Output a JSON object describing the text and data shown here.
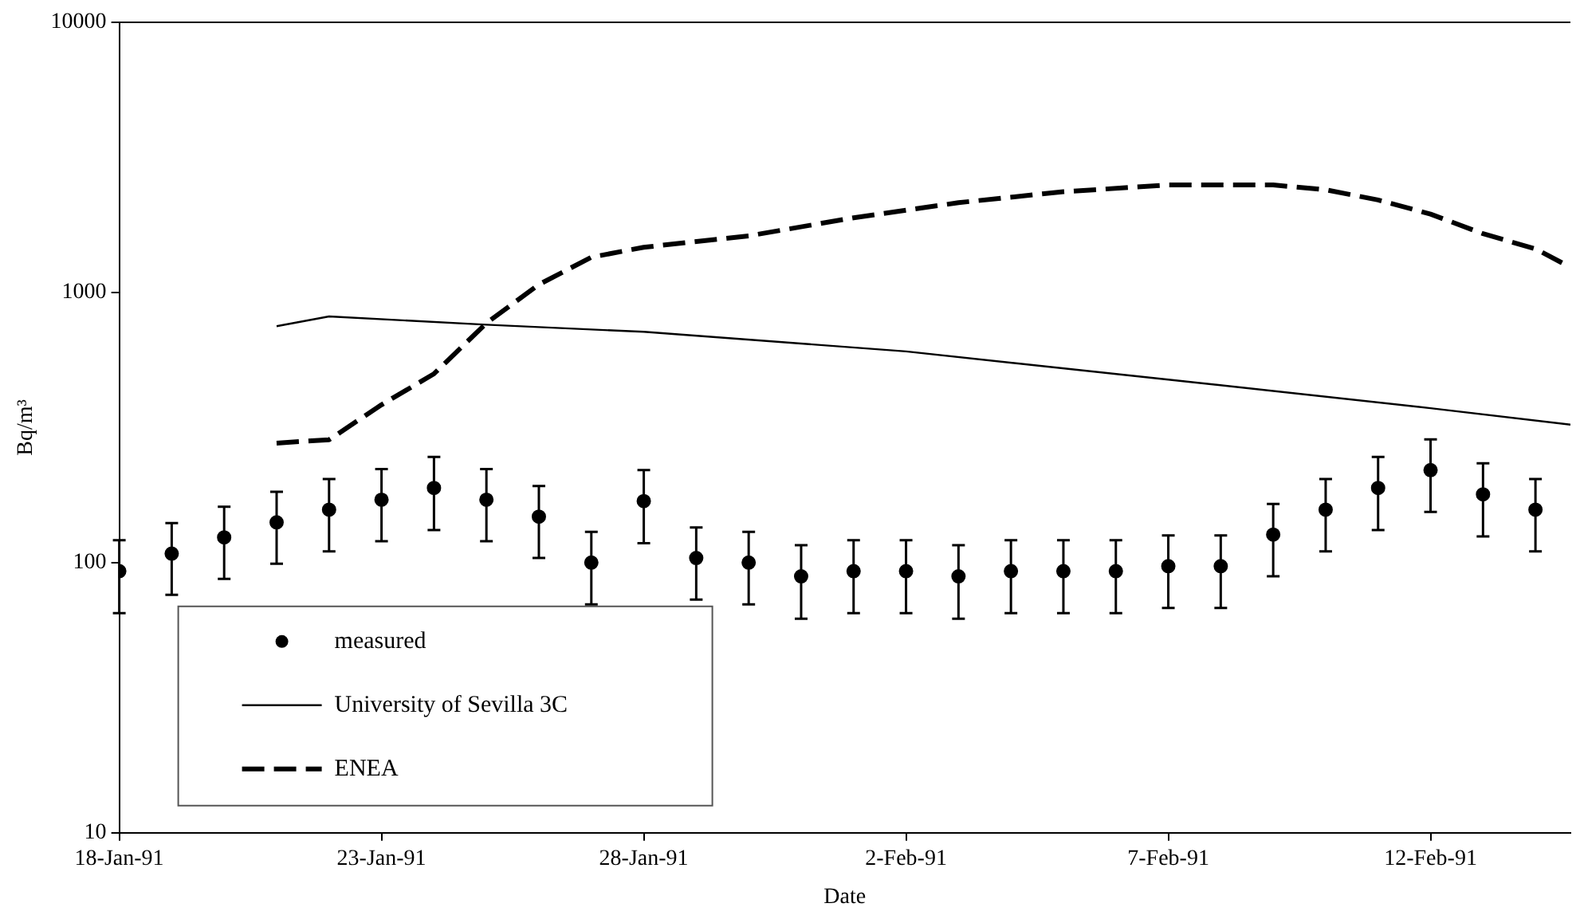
{
  "chart_data": {
    "type": "scatter",
    "xlabel": "Date",
    "ylabel": "Bq/m³",
    "log": "y",
    "grid": false,
    "legend": "bottom left",
    "xlim": [
      "1991-01-18",
      "1991-02-14T16:00"
    ],
    "xticks": [
      {
        "value": "1991-01-18",
        "label": "18-Jan-91"
      },
      {
        "value": "1991-01-23",
        "label": "23-Jan-91"
      },
      {
        "value": "1991-01-28",
        "label": "28-Jan-91"
      },
      {
        "value": "1991-02-02",
        "label": "2-Feb-91"
      },
      {
        "value": "1991-02-07",
        "label": "7-Feb-91"
      },
      {
        "value": "1991-02-12",
        "label": "12-Feb-91"
      }
    ],
    "ylim": [
      10,
      10000
    ],
    "yticks": [
      10,
      100,
      1000,
      10000
    ],
    "series": [
      {
        "name": "measured",
        "marker": "circle",
        "color": "#000000",
        "x": [
          "1991-01-18",
          "1991-01-19",
          "1991-01-20",
          "1991-01-21",
          "1991-01-22",
          "1991-01-23",
          "1991-01-24",
          "1991-01-25",
          "1991-01-26",
          "1991-01-27",
          "1991-01-28",
          "1991-01-29",
          "1991-01-30",
          "1991-01-31",
          "1991-02-01",
          "1991-02-02",
          "1991-02-03",
          "1991-02-04",
          "1991-02-05",
          "1991-02-06",
          "1991-02-07",
          "1991-02-08",
          "1991-02-09",
          "1991-02-10",
          "1991-02-11",
          "1991-02-12",
          "1991-02-13",
          "1991-02-14"
        ],
        "values": [
          93,
          108,
          124,
          141,
          157,
          171,
          189,
          171,
          148,
          100,
          169,
          104,
          100,
          89,
          93,
          93,
          89,
          93,
          93,
          93,
          97,
          97,
          127,
          157,
          189,
          220,
          179,
          157
        ],
        "errors": [
          28,
          32,
          37,
          42,
          47,
          51,
          57,
          51,
          44,
          30,
          51,
          31,
          30,
          27,
          28,
          28,
          27,
          28,
          28,
          28,
          29,
          29,
          38,
          47,
          57,
          66,
          54,
          47
        ]
      },
      {
        "name": "University of Sevilla 3C",
        "type": "line",
        "line_style": "solid",
        "marker": "none",
        "color": "#000000",
        "x": [
          "1991-01-21",
          "1991-01-22",
          "1991-01-25",
          "1991-01-28",
          "1991-02-02",
          "1991-02-07",
          "1991-02-12",
          "1991-02-14T16:00"
        ],
        "values": [
          750,
          815,
          760,
          715,
          605,
          476,
          373,
          324
        ]
      },
      {
        "name": "ENEA",
        "type": "line",
        "line_style": "dashed",
        "marker": "none",
        "color": "#000000",
        "x": [
          "1991-01-21",
          "1991-01-22",
          "1991-01-23",
          "1991-01-24",
          "1991-01-25",
          "1991-01-26",
          "1991-01-27",
          "1991-01-28",
          "1991-01-30",
          "1991-02-01",
          "1991-02-03",
          "1991-02-05",
          "1991-02-07",
          "1991-02-09",
          "1991-02-10",
          "1991-02-11",
          "1991-02-12",
          "1991-02-13",
          "1991-02-14",
          "1991-02-14T16:00"
        ],
        "values": [
          277,
          285,
          384,
          500,
          770,
          1070,
          1350,
          1470,
          1620,
          1890,
          2150,
          2360,
          2500,
          2500,
          2400,
          2200,
          1950,
          1650,
          1450,
          1240
        ]
      }
    ]
  }
}
